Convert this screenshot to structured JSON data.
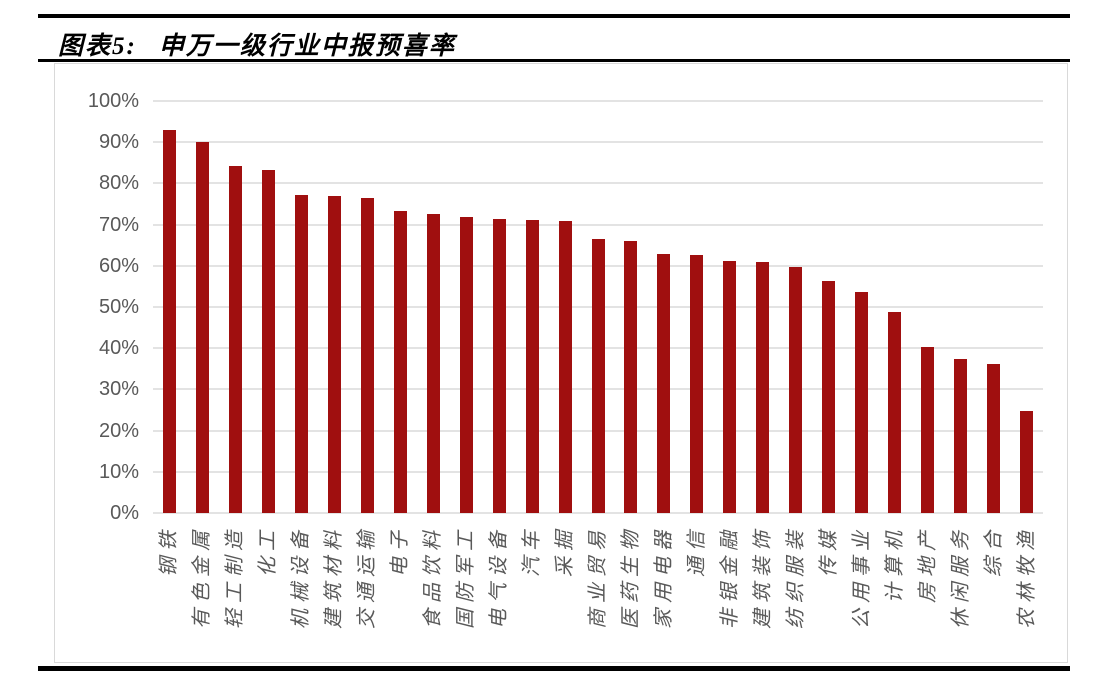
{
  "header": {
    "figure_label": "图表5:",
    "title": "申万一级行业中报预喜率"
  },
  "chart_data": {
    "type": "bar",
    "title": "申万一级行业中报预喜率",
    "categories": [
      "钢铁",
      "有色金属",
      "轻工制造",
      "化工",
      "机械设备",
      "建筑材料",
      "交通运输",
      "电子",
      "食品饮料",
      "国防军工",
      "电气设备",
      "汽车",
      "采掘",
      "商业贸易",
      "医药生物",
      "家用电器",
      "通信",
      "非银金融",
      "建筑装饰",
      "纺织服装",
      "传媒",
      "公用事业",
      "计算机",
      "房地产",
      "休闲服务",
      "综合",
      "农林牧渔"
    ],
    "values": [
      93,
      90,
      84.2,
      83.3,
      77.3,
      77,
      76.4,
      73.4,
      72.6,
      71.8,
      71.4,
      71.2,
      70.9,
      66.5,
      66.1,
      62.8,
      62.6,
      61.1,
      60.9,
      59.8,
      56.4,
      53.6,
      48.7,
      40.3,
      37.3,
      36.1,
      24.7
    ],
    "unit": "%",
    "xlabel": "",
    "ylabel": "",
    "ylim": [
      0,
      100
    ],
    "ytick_step": 10,
    "yticks": [
      "0%",
      "10%",
      "20%",
      "30%",
      "40%",
      "50%",
      "60%",
      "70%",
      "80%",
      "90%",
      "100%"
    ],
    "grid": "horizontal",
    "legend": "none",
    "colors": {
      "bar": "#A00F0F",
      "axis_text": "#595959",
      "gridline": "#E3E3E3",
      "rule": "#000000",
      "chart_border": "#D9D9D9"
    }
  }
}
